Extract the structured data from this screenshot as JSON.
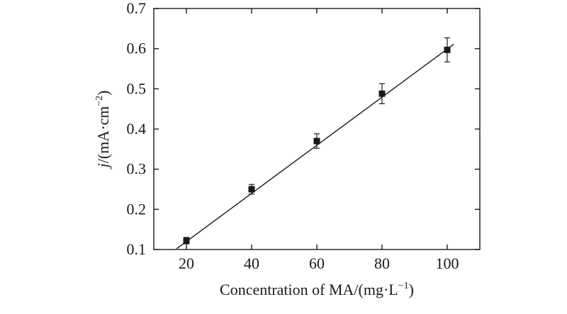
{
  "chart_data": {
    "type": "scatter",
    "title": "",
    "xlabel": "Concentration of MA/(mg·L",
    "xlabel_sup": "−1",
    "xlabel_close": ")",
    "ylabel_var": "j",
    "ylabel_unit": "/(mA·cm",
    "ylabel_sup": "−2",
    "ylabel_close": ")",
    "xlim": [
      10,
      110
    ],
    "ylim": [
      0.1,
      0.7
    ],
    "xticks": [
      20,
      40,
      60,
      80,
      100
    ],
    "yticks": [
      0.1,
      0.2,
      0.3,
      0.4,
      0.5,
      0.6,
      0.7
    ],
    "series": [
      {
        "name": "MA",
        "marker": "square",
        "x": [
          20,
          40,
          60,
          80,
          100
        ],
        "y": [
          0.122,
          0.25,
          0.37,
          0.488,
          0.597
        ],
        "error": [
          0.008,
          0.012,
          0.018,
          0.025,
          0.03
        ]
      }
    ],
    "fit_line": {
      "x": [
        17,
        102
      ],
      "y": [
        0.102,
        0.611
      ]
    }
  }
}
